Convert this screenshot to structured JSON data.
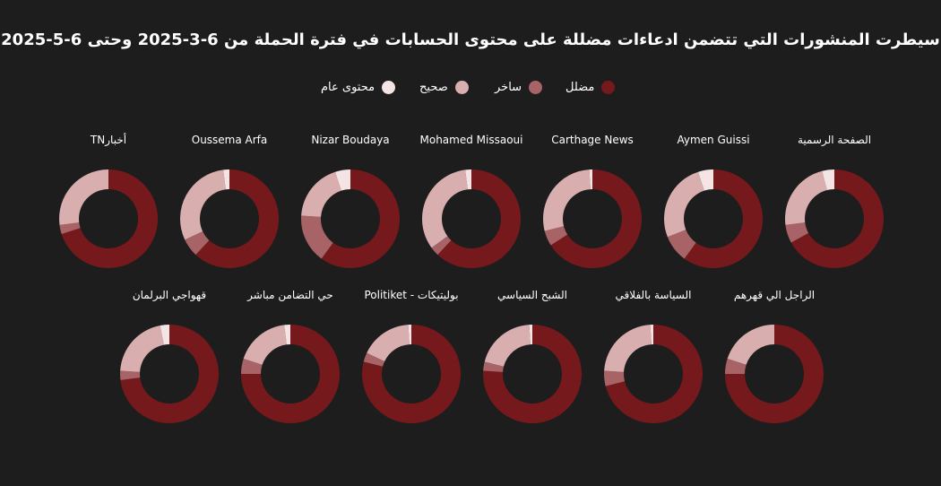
{
  "title": "سيطرت المنشورات التي تتضمن ادعاءات مضللة على محتوى الحسابات في فترة الحملة من 6-3-2025 وحتى 6-5-2025",
  "legend": [
    {
      "label": "مضلل",
      "color": "#76191c"
    },
    {
      "label": "ساخر",
      "color": "#a86366"
    },
    {
      "label": "صحيح",
      "color": "#d9aeae"
    },
    {
      "label": "محتوى عام",
      "color": "#f5e4e4"
    }
  ],
  "chart_data": {
    "type": "donut",
    "series_names": [
      "مضلل",
      "ساخر",
      "صحيح",
      "محتوى عام"
    ],
    "charts": [
      {
        "label": "الصفحة الرسمية",
        "values": [
          67,
          6,
          23,
          4
        ]
      },
      {
        "label": "Aymen Guissi",
        "values": [
          60,
          9,
          26,
          5
        ]
      },
      {
        "label": "Carthage News",
        "values": [
          66,
          5,
          28,
          1
        ]
      },
      {
        "label": "Mohamed Missaoui",
        "values": [
          62,
          3,
          33,
          2
        ]
      },
      {
        "label": "Nizar Boudaya",
        "values": [
          60,
          16,
          19,
          5
        ]
      },
      {
        "label": "Oussema Arfa",
        "values": [
          62,
          6,
          30,
          2
        ]
      },
      {
        "label": "أخبارTN",
        "values": [
          70,
          3,
          27,
          0
        ]
      },
      {
        "label": "الراجل الي قهرهم",
        "values": [
          75,
          5,
          20,
          0
        ]
      },
      {
        "label": "السياسة بالفلاقي",
        "values": [
          71,
          5,
          23,
          1
        ]
      },
      {
        "label": "الشبح السياسي",
        "values": [
          76,
          3,
          20,
          1
        ]
      },
      {
        "label": "Politiket - بوليتيكات",
        "values": [
          79,
          3,
          17,
          1
        ]
      },
      {
        "label": "حي التضامن مباشر",
        "values": [
          75,
          5,
          18,
          2
        ]
      },
      {
        "label": "قهواجي البرلمان",
        "values": [
          73,
          3,
          21,
          3
        ]
      }
    ]
  }
}
